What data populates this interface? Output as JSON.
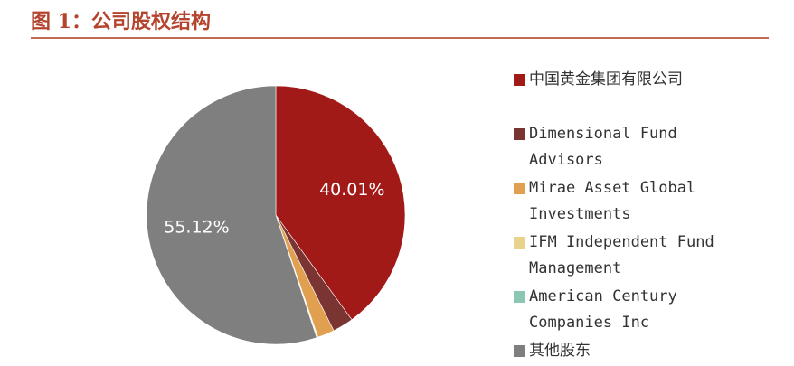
{
  "chart_data": {
    "type": "pie",
    "title": "图 1：公司股权结构",
    "categories": [
      "中国黄金集团有限公司",
      "Dimensional Fund Advisors",
      "Mirae Asset Global Investments",
      "IFM Independent Fund Management",
      "American Century Companies Inc",
      "其他股东"
    ],
    "values": [
      40.01,
      2.6,
      2.1,
      0.1,
      0.07,
      55.12
    ],
    "value_labels": [
      "40.01%",
      null,
      null,
      null,
      null,
      "55.12%"
    ],
    "colors": [
      "#a11a17",
      "#7a3431",
      "#e0a050",
      "#e8d28c",
      "#8cc7b6",
      "#7f7f7f"
    ],
    "legend": "right"
  }
}
